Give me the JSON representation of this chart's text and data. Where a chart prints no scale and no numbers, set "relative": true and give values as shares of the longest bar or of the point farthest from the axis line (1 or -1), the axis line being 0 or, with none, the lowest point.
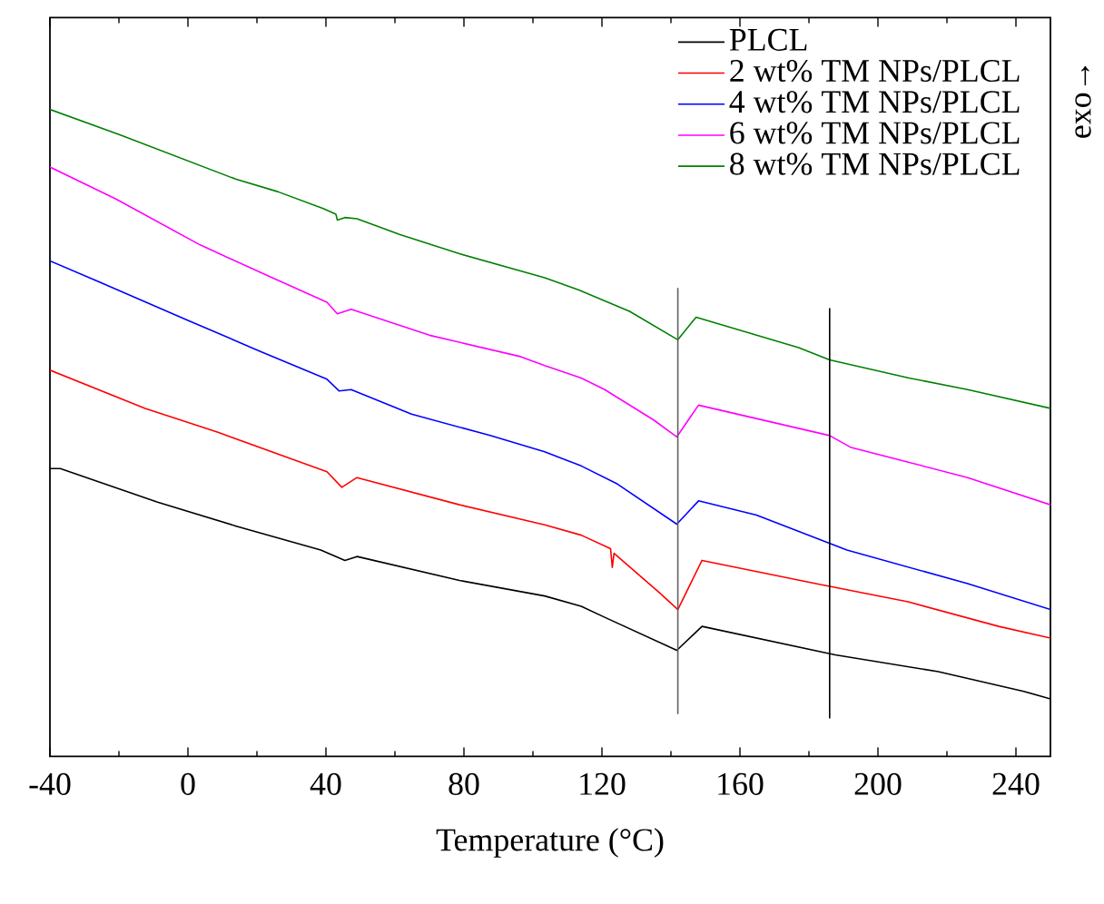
{
  "chart_data": {
    "type": "line",
    "relative": true,
    "xlabel": "Temperature (°C)",
    "annotations": [
      "exo→"
    ],
    "xlim": [
      -40,
      250
    ],
    "xticks": [
      -40,
      0,
      40,
      80,
      120,
      160,
      200,
      240
    ],
    "tick_labels": "x",
    "legend": "top right",
    "marker": "none",
    "line_style": "solid",
    "ref_lines": [
      {
        "axis": "x",
        "value": 142,
        "color": "#606060"
      },
      {
        "axis": "x",
        "value": 186,
        "color": "#000000"
      }
    ],
    "series": [
      {
        "name": "PLCL",
        "color": "#000000",
        "x": [
          -40,
          -37,
          -8.8,
          14,
          38.5,
          45.5,
          49,
          78.7,
          103.4,
          114,
          120.8,
          141.7,
          149,
          187.6,
          217.5,
          242,
          250
        ],
        "values": [
          0.445,
          0.445,
          0.393,
          0.356,
          0.319,
          0.303,
          0.309,
          0.272,
          0.248,
          0.232,
          0.215,
          0.164,
          0.201,
          0.157,
          0.131,
          0.101,
          0.089
        ]
      },
      {
        "name": "2 wt% TM NPs/PLCL",
        "color": "#ff0000",
        "x": [
          -40,
          -12.4,
          8.7,
          40.3,
          44.6,
          49,
          78.7,
          103.4,
          114,
          122.5,
          123,
          123.5,
          136.7,
          142,
          149,
          182,
          208.7,
          235,
          250
        ],
        "values": [
          0.597,
          0.538,
          0.501,
          0.44,
          0.416,
          0.431,
          0.389,
          0.358,
          0.342,
          0.321,
          0.292,
          0.314,
          0.253,
          0.227,
          0.303,
          0.267,
          0.239,
          0.201,
          0.183
        ]
      },
      {
        "name": "4 wt% TM NPs/PLCL",
        "color": "#0000ff",
        "x": [
          -40,
          -26.4,
          0,
          21,
          40.3,
          43.8,
          47.3,
          64.8,
          87.6,
          103.4,
          114,
          124.5,
          141.7,
          148,
          164.8,
          191,
          226,
          250
        ],
        "values": [
          0.766,
          0.735,
          0.674,
          0.626,
          0.583,
          0.565,
          0.567,
          0.529,
          0.496,
          0.471,
          0.449,
          0.421,
          0.359,
          0.395,
          0.373,
          0.319,
          0.267,
          0.227
        ]
      },
      {
        "name": "6 wt% TM NPs/PLCL",
        "color": "#ff00ff",
        "x": [
          -40,
          -21,
          3.4,
          22.7,
          40.3,
          43.3,
          47.3,
          70,
          96.4,
          103.4,
          114,
          120.8,
          135,
          141.7,
          148,
          186,
          192,
          226,
          250
        ],
        "values": [
          0.911,
          0.862,
          0.791,
          0.744,
          0.702,
          0.684,
          0.691,
          0.651,
          0.618,
          0.604,
          0.585,
          0.567,
          0.52,
          0.494,
          0.543,
          0.496,
          0.478,
          0.431,
          0.389
        ]
      },
      {
        "name": "8 wt% TM NPs/PLCL",
        "color": "#008000",
        "x": [
          -40,
          -19.4,
          14,
          26,
          39.2,
          42.9,
          43.3,
          45.5,
          49,
          61.3,
          78.7,
          103.4,
          113.3,
          128,
          142,
          147.3,
          177,
          186,
          209,
          226,
          250
        ],
        "values": [
          1.0,
          0.96,
          0.892,
          0.873,
          0.847,
          0.838,
          0.829,
          0.833,
          0.831,
          0.807,
          0.777,
          0.74,
          0.721,
          0.688,
          0.644,
          0.679,
          0.632,
          0.613,
          0.585,
          0.567,
          0.538
        ]
      }
    ]
  }
}
